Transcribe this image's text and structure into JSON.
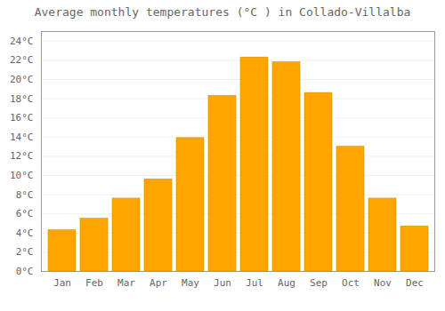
{
  "chart_data": {
    "type": "bar",
    "title": "Average monthly temperatures (°C ) in Collado-Villalba",
    "categories": [
      "Jan",
      "Feb",
      "Mar",
      "Apr",
      "May",
      "Jun",
      "Jul",
      "Aug",
      "Sep",
      "Oct",
      "Nov",
      "Dec"
    ],
    "values": [
      4.3,
      5.5,
      7.6,
      9.6,
      13.9,
      18.3,
      22.3,
      21.8,
      18.6,
      13.0,
      7.6,
      4.7
    ],
    "color": "#FFA500",
    "ylim": [
      0,
      25
    ],
    "yticks": [
      {
        "value": 0,
        "label": "0°C"
      },
      {
        "value": 2,
        "label": "2°C"
      },
      {
        "value": 4,
        "label": "4°C"
      },
      {
        "value": 6,
        "label": "6°C"
      },
      {
        "value": 8,
        "label": "8°C"
      },
      {
        "value": 10,
        "label": "10°C"
      },
      {
        "value": 12,
        "label": "12°C"
      },
      {
        "value": 14,
        "label": "14°C"
      },
      {
        "value": 16,
        "label": "16°C"
      },
      {
        "value": 18,
        "label": "18°C"
      },
      {
        "value": 20,
        "label": "20°C"
      },
      {
        "value": 22,
        "label": "22°C"
      },
      {
        "value": 24,
        "label": "24°C"
      }
    ],
    "grid": true
  }
}
